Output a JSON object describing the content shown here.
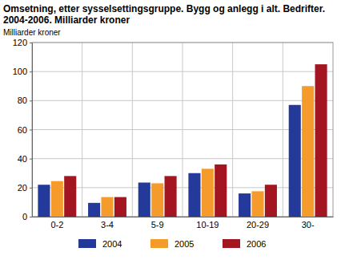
{
  "chart_data": {
    "type": "bar",
    "title": "Omsetning, etter sysselsettingsgruppe. Bygg og anlegg i alt. Bedrifter. 2004-2006. Milliarder kroner",
    "y_label": "Milliarder kroner",
    "categories": [
      "0-2",
      "3-4",
      "5-9",
      "10-19",
      "20-29",
      "30-"
    ],
    "series": [
      {
        "name": "2004",
        "color": "#233a9a",
        "values": [
          22,
          9.5,
          23.5,
          30,
          16,
          77
        ]
      },
      {
        "name": "2005",
        "color": "#f59b2b",
        "values": [
          24.5,
          13.5,
          23,
          33,
          17.5,
          90
        ]
      },
      {
        "name": "2006",
        "color": "#a31621",
        "values": [
          28,
          13.5,
          28,
          36,
          22,
          105
        ]
      }
    ],
    "ylim": [
      0,
      120
    ],
    "yticks": [
      0,
      20,
      40,
      60,
      80,
      100,
      120
    ],
    "grid": true,
    "legend": "bottom"
  }
}
